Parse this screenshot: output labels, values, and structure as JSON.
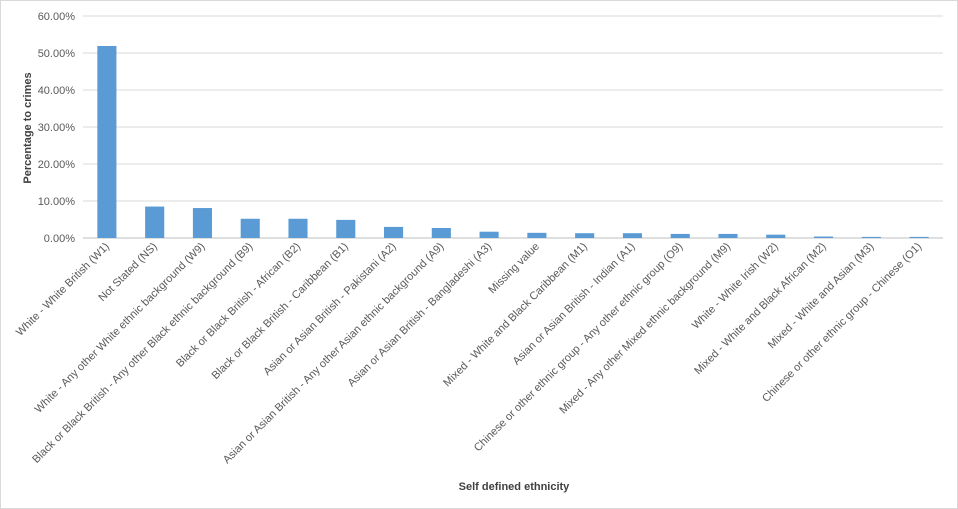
{
  "chart_data": {
    "type": "bar",
    "title": "",
    "xlabel": "Self defined ethnicity",
    "ylabel": "Percentage to crimes",
    "ylim": [
      0,
      60
    ],
    "yticks": [
      "0.00%",
      "10.00%",
      "20.00%",
      "30.00%",
      "40.00%",
      "50.00%",
      "60.00%"
    ],
    "grid": true,
    "legend": "none",
    "bar_color": "#5b9bd5",
    "categories": [
      "White - White British (W1)",
      "Not Stated (NS)",
      "White - Any other White ethnic background (W9)",
      "Black or Black British - Any other Black ethnic background (B9)",
      "Black or Black British - African (B2)",
      "Black or Black British - Caribbean (B1)",
      "Asian or Asian British - Pakistani (A2)",
      "Asian or Asian British - Any other Asian ethnic background (A9)",
      "Asian or Asian British - Bangladeshi (A3)",
      "Missing value",
      "Mixed - White and Black Caribbean (M1)",
      "Asian or Asian British - Indian (A1)",
      "Chinese or other ethnic group - Any other ethnic group (O9)",
      "Mixed - Any other Mixed ethnic background (M9)",
      "White - White Irish (W2)",
      "Mixed - White and Black African (M2)",
      "Mixed - White and Asian (M3)",
      "Chinese or other ethnic group - Chinese (O1)"
    ],
    "values": [
      51.9,
      8.5,
      8.1,
      5.2,
      5.2,
      4.9,
      3.0,
      2.7,
      1.7,
      1.4,
      1.3,
      1.3,
      1.1,
      1.1,
      0.9,
      0.4,
      0.3,
      0.3
    ]
  }
}
